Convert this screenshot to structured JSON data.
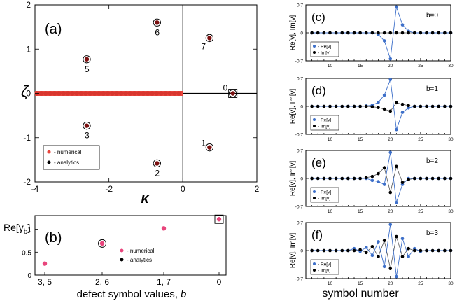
{
  "chart_data": [
    {
      "panel": "(a)",
      "type": "scatter",
      "xlabel": "κ",
      "ylabel": "ζ",
      "xlim": [
        -4,
        2
      ],
      "ylim": [
        -2,
        2
      ],
      "x_ticks": [
        "-4",
        "-2",
        "0",
        "2"
      ],
      "y_ticks": [
        "-2",
        "-1",
        "0",
        "1",
        "2"
      ],
      "legend": [
        "- numerical",
        "- analytics"
      ],
      "colors": {
        "numerical": "#e8453c",
        "analytics": "#000000"
      },
      "points": [
        {
          "label": "0",
          "x": 1.35,
          "y": 0.0
        },
        {
          "label": "1",
          "x": 0.72,
          "y": -1.22
        },
        {
          "label": "2",
          "x": -0.7,
          "y": -1.58
        },
        {
          "label": "3",
          "x": -2.6,
          "y": -0.73
        },
        {
          "label": "5",
          "x": -2.6,
          "y": 0.77
        },
        {
          "label": "6",
          "x": -0.7,
          "y": 1.6
        },
        {
          "label": "7",
          "x": 0.72,
          "y": 1.25
        }
      ],
      "continuum": {
        "x_from": -4,
        "x_to": 0,
        "y": 0
      }
    },
    {
      "panel": "(b)",
      "type": "scatter",
      "ylabel": "Re[γ_b]",
      "ylabel_main": "Re[γ",
      "ylabel_sub": "b",
      "ylabel_close": "]",
      "xlabel": "defect symbol values, b",
      "xlabel_pre": "defect symbol values, ",
      "xlabel_var": "b",
      "categories": [
        "3, 5",
        "2, 6",
        "1, 7",
        "0"
      ],
      "values": [
        0.25,
        0.69,
        1.02,
        1.22
      ],
      "ylim": [
        0,
        1.3
      ],
      "y_ticks": [
        "0",
        "0.5",
        "1"
      ],
      "legend": [
        "- numerical",
        "- analytics"
      ],
      "colors": {
        "numerical": "#e8457c",
        "analytics": "#000000"
      }
    },
    {
      "panel": "(c)",
      "label": "b=0",
      "type": "line",
      "xlabel": "symbol number",
      "ylabel": "Re[v], Im[v]",
      "xlim": [
        6,
        30
      ],
      "ylim": [
        -0.7,
        0.7
      ],
      "y_ticks": [
        "0.7",
        "0",
        "-0.7"
      ],
      "x_ticks": [
        "10",
        "15",
        "20",
        "25",
        "30"
      ],
      "legend": [
        "- Re[v]",
        "- Im[v]"
      ],
      "colors": {
        "re": "#3d6fc9",
        "im": "#000000"
      },
      "series": [
        {
          "name": "Re[v]",
          "x": [
            17,
            18,
            19,
            20,
            21,
            22,
            23,
            24
          ],
          "values": [
            0.0,
            -0.04,
            -0.2,
            -0.65,
            0.65,
            0.2,
            0.04,
            0.0
          ]
        },
        {
          "name": "Im[v]",
          "x": [
            7,
            30
          ],
          "values": [
            0,
            0
          ]
        }
      ]
    },
    {
      "panel": "(d)",
      "label": "b=1",
      "type": "line",
      "ylabel": "Re[v], Im[v]",
      "xlim": [
        6,
        30
      ],
      "ylim": [
        -0.7,
        0.7
      ],
      "y_ticks": [
        "0.7",
        "0",
        "-0.7"
      ],
      "x_ticks": [
        "10",
        "15",
        "20",
        "25",
        "30"
      ],
      "legend": [
        "- Re[v]",
        "- Im[v]"
      ],
      "colors": {
        "re": "#3d6fc9",
        "im": "#000000"
      },
      "series": [
        {
          "name": "Re[v]",
          "x": [
            16,
            17,
            18,
            19,
            20,
            21,
            22,
            23,
            24
          ],
          "values": [
            0.01,
            0.03,
            0.1,
            0.28,
            0.67,
            -0.58,
            -0.15,
            -0.04,
            0.0
          ]
        },
        {
          "name": "Im[v]",
          "x": [
            16,
            17,
            18,
            19,
            20,
            21,
            22,
            23,
            24
          ],
          "values": [
            0.0,
            -0.01,
            -0.03,
            -0.07,
            -0.12,
            0.09,
            0.05,
            0.02,
            0.0
          ]
        }
      ]
    },
    {
      "panel": "(e)",
      "label": "b=2",
      "type": "line",
      "ylabel": "Re[v], Im[v]",
      "xlim": [
        6,
        30
      ],
      "ylim": [
        -0.7,
        0.7
      ],
      "y_ticks": [
        "0.7",
        "0",
        "-0.7"
      ],
      "x_ticks": [
        "10",
        "15",
        "20",
        "25",
        "30"
      ],
      "legend": [
        "- Re[v]",
        "- Im[v]"
      ],
      "colors": {
        "re": "#3d6fc9",
        "im": "#000000"
      },
      "series": [
        {
          "name": "Re[v]",
          "x": [
            15,
            16,
            17,
            18,
            19,
            20,
            21,
            22,
            23,
            24,
            25
          ],
          "values": [
            0.0,
            0.0,
            -0.05,
            -0.08,
            -0.15,
            0.65,
            -0.6,
            -0.15,
            0.0,
            0.0,
            0.0
          ]
        },
        {
          "name": "Im[v]",
          "x": [
            15,
            16,
            17,
            18,
            19,
            20,
            21,
            22,
            23,
            24,
            25
          ],
          "values": [
            0.0,
            0.02,
            0.05,
            0.12,
            0.27,
            -0.35,
            0.3,
            -0.1,
            -0.03,
            0.0,
            0.0
          ]
        }
      ]
    },
    {
      "panel": "(f)",
      "label": "b=3",
      "type": "line",
      "ylabel": "Re[v], Im[v]",
      "xlabel": "symbol number",
      "xlim": [
        6,
        30
      ],
      "ylim": [
        -0.7,
        0.7
      ],
      "y_ticks": [
        "0.7",
        "0",
        "-0.7"
      ],
      "x_ticks": [
        "10",
        "15",
        "20",
        "25",
        "30"
      ],
      "legend": [
        "- Re[v]",
        "- Im[v]"
      ],
      "colors": {
        "re": "#3d6fc9",
        "im": "#000000"
      },
      "series": [
        {
          "name": "Re[v]",
          "x": [
            14,
            15,
            16,
            17,
            18,
            19,
            20,
            21,
            22,
            23,
            24,
            25,
            26
          ],
          "values": [
            0.05,
            -0.02,
            0.08,
            -0.12,
            0.22,
            -0.4,
            0.65,
            -0.65,
            0.3,
            -0.15,
            0.05,
            -0.02,
            0.0
          ]
        },
        {
          "name": "Im[v]",
          "x": [
            14,
            15,
            16,
            17,
            18,
            19,
            20,
            21,
            22,
            23,
            24,
            25,
            26
          ],
          "values": [
            0.0,
            0.02,
            -0.05,
            0.1,
            -0.15,
            0.25,
            -0.45,
            0.35,
            -0.15,
            0.05,
            0.0,
            0.0,
            0.0
          ]
        }
      ]
    }
  ]
}
